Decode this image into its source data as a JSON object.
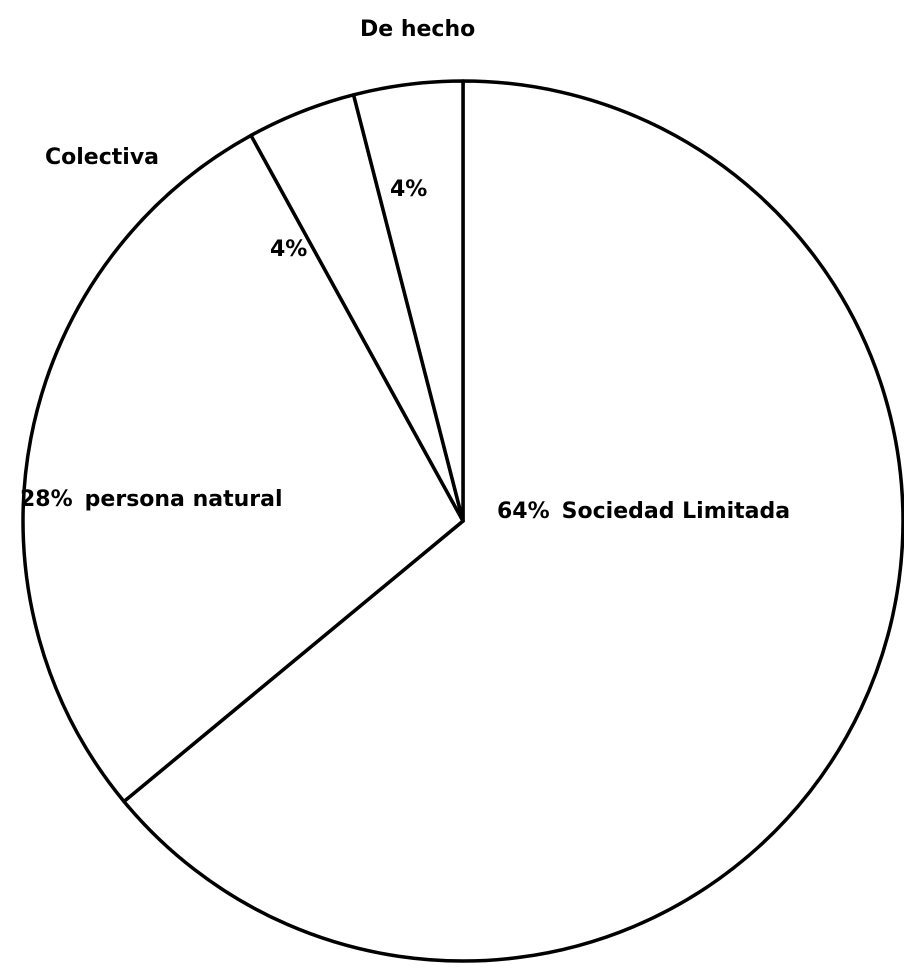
{
  "chart_data": {
    "type": "pie",
    "categories": [
      "Sociedad Limitada",
      "persona natural",
      "Colectiva",
      "De hecho"
    ],
    "values": [
      64,
      28,
      4,
      4
    ],
    "value_labels": [
      "64%",
      "28%",
      "4%",
      "4%"
    ],
    "color": "#ffffff"
  }
}
